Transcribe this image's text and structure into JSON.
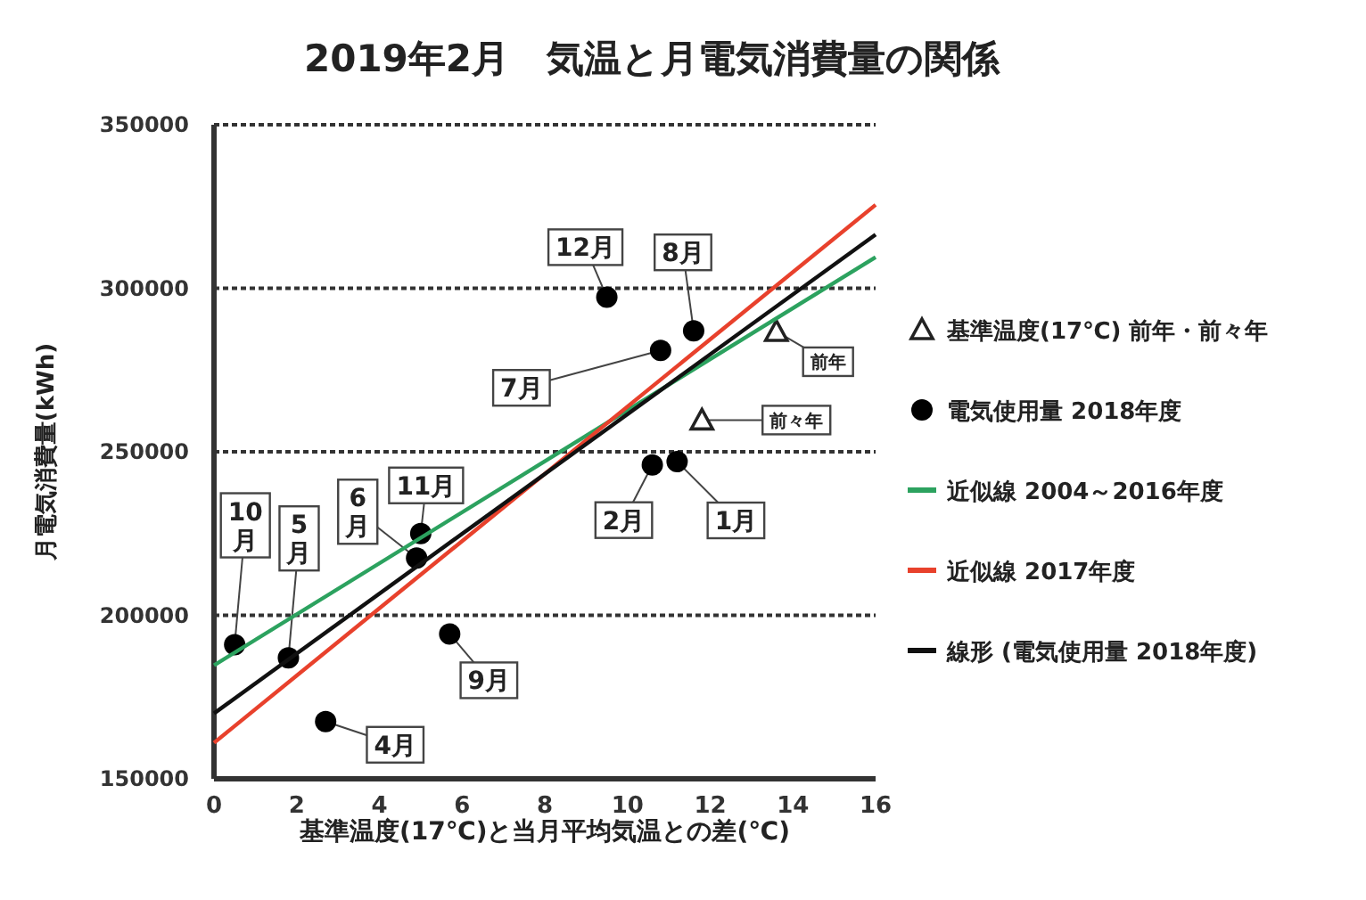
{
  "chart_data": {
    "type": "scatter",
    "title": "2019年2月　気温と月電気消費量の関係",
    "xlabel": "基準温度(17℃)と当月平均気温との差(℃)",
    "ylabel": "月電気消費量(kWh)",
    "xlim": [
      0,
      16
    ],
    "xticks": [
      0,
      2,
      4,
      6,
      8,
      10,
      12,
      14,
      16
    ],
    "ylim": [
      150000,
      350000
    ],
    "yticks": [
      150000,
      200000,
      250000,
      300000,
      350000
    ],
    "grid": "y",
    "legend": "right",
    "series": [
      {
        "name": "基準温度(17℃) 前年・前々年",
        "marker": "triangle",
        "color": "#222222",
        "x": [
          13.6,
          11.8
        ],
        "values": [
          286800,
          259700
        ]
      },
      {
        "name": "電気使用量 2018年度",
        "marker": "circle",
        "color": "#000000",
        "x": [
          0.5,
          1.8,
          4.9,
          5.0,
          2.7,
          5.7,
          9.5,
          10.8,
          11.6,
          10.6,
          11.2
        ],
        "values": [
          191000,
          187000,
          217500,
          225000,
          167500,
          194300,
          297300,
          281000,
          287000,
          246000,
          247000
        ]
      },
      {
        "name": "近似線 2004～2016年度",
        "type": "line",
        "marker": "none",
        "color": "#2ca25f",
        "x": [
          0,
          16
        ],
        "values": [
          184700,
          309500
        ]
      },
      {
        "name": "近似線 2017年度",
        "type": "line",
        "marker": "none",
        "color": "#e8412c",
        "x": [
          0,
          16
        ],
        "values": [
          161000,
          325500
        ]
      },
      {
        "name": "線形 (電気使用量 2018年度)",
        "type": "line",
        "marker": "none",
        "color": "#111111",
        "x": [
          0,
          16
        ],
        "values": [
          170000,
          316400
        ]
      }
    ],
    "annotations": [
      {
        "text": "10月",
        "x": 0.5,
        "y": 191000
      },
      {
        "text": "5月",
        "x": 1.8,
        "y": 187000
      },
      {
        "text": "6月",
        "x": 4.9,
        "y": 217500
      },
      {
        "text": "11月",
        "x": 5.0,
        "y": 225000
      },
      {
        "text": "4月",
        "x": 2.7,
        "y": 167500
      },
      {
        "text": "9月",
        "x": 5.7,
        "y": 194300
      },
      {
        "text": "12月",
        "x": 9.5,
        "y": 297300
      },
      {
        "text": "7月",
        "x": 10.8,
        "y": 281000
      },
      {
        "text": "8月",
        "x": 11.6,
        "y": 287000
      },
      {
        "text": "2月",
        "x": 10.6,
        "y": 246000
      },
      {
        "text": "1月",
        "x": 11.2,
        "y": 247000
      },
      {
        "text": "前年",
        "x": 13.6,
        "y": 286800
      },
      {
        "text": "前々年",
        "x": 11.8,
        "y": 259700
      }
    ]
  }
}
